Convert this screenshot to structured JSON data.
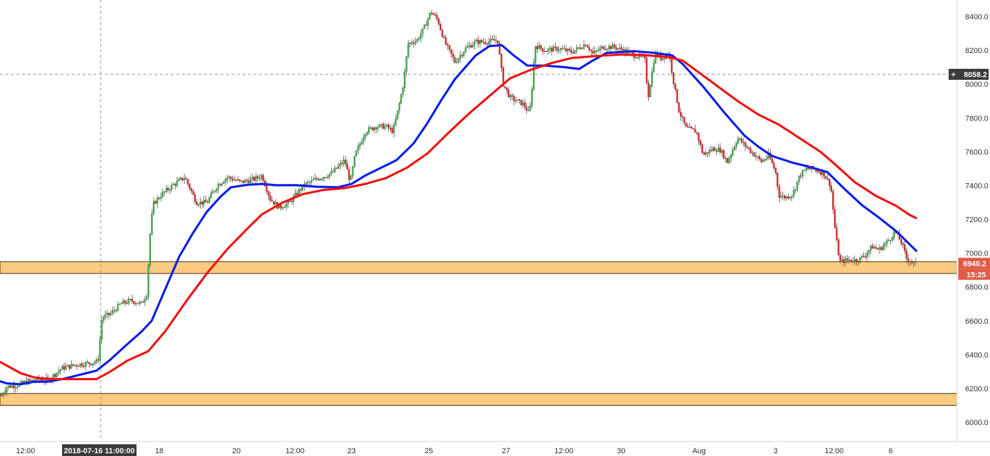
{
  "chart_data": {
    "type": "candlestick",
    "title": "",
    "xlabel": "",
    "ylabel": "",
    "ylim": [
      5900,
      8480
    ],
    "y_ticks": [
      "6000.0",
      "6200.0",
      "6400.0",
      "6600.0",
      "6800.0",
      "7000.0",
      "7200.0",
      "7400.0",
      "7600.0",
      "7800.0",
      "8000.0",
      "8200.0",
      "8400.0"
    ],
    "x_tick_labels": [
      "12:00",
      "18",
      "20",
      "12:00",
      "23",
      "25",
      "27",
      "12:00",
      "30",
      "Aug",
      "3",
      "12:00",
      "6"
    ],
    "crosshair": {
      "x_label": "2018-07-16 11:00:00",
      "y_label": "8058.2",
      "y_value": 8058.2
    },
    "last_price": {
      "label": "6940.2",
      "value": 6940.2,
      "countdown": "15:25"
    },
    "zones": [
      {
        "name": "upper-support-zone",
        "low": 6880,
        "high": 6950
      },
      {
        "name": "lower-support-zone",
        "low": 6100,
        "high": 6170
      }
    ],
    "series": [
      {
        "name": "",
        "kind": "moving-average",
        "color": "#0b1ee6",
        "points": [
          [
            -6,
            6250
          ],
          [
            10,
            6230
          ],
          [
            30,
            6225
          ],
          [
            50,
            6240
          ],
          [
            70,
            6240
          ],
          [
            90,
            6255
          ],
          [
            110,
            6275
          ],
          [
            140,
            6305
          ],
          [
            160,
            6370
          ],
          [
            180,
            6445
          ],
          [
            205,
            6535
          ],
          [
            220,
            6600
          ],
          [
            240,
            6790
          ],
          [
            260,
            6980
          ],
          [
            280,
            7120
          ],
          [
            300,
            7245
          ],
          [
            320,
            7335
          ],
          [
            335,
            7390
          ],
          [
            360,
            7405
          ],
          [
            380,
            7410
          ],
          [
            400,
            7402
          ],
          [
            430,
            7402
          ],
          [
            460,
            7393
          ],
          [
            490,
            7390
          ],
          [
            510,
            7410
          ],
          [
            530,
            7460
          ],
          [
            555,
            7510
          ],
          [
            575,
            7550
          ],
          [
            600,
            7650
          ],
          [
            620,
            7770
          ],
          [
            640,
            7905
          ],
          [
            660,
            8030
          ],
          [
            690,
            8170
          ],
          [
            710,
            8225
          ],
          [
            728,
            8230
          ],
          [
            745,
            8170
          ],
          [
            765,
            8110
          ],
          [
            790,
            8110
          ],
          [
            820,
            8100
          ],
          [
            840,
            8090
          ],
          [
            860,
            8140
          ],
          [
            880,
            8185
          ],
          [
            920,
            8195
          ],
          [
            950,
            8185
          ],
          [
            975,
            8170
          ],
          [
            990,
            8120
          ],
          [
            1020,
            7985
          ],
          [
            1050,
            7835
          ],
          [
            1080,
            7695
          ],
          [
            1100,
            7630
          ],
          [
            1120,
            7575
          ],
          [
            1150,
            7535
          ],
          [
            1170,
            7515
          ],
          [
            1200,
            7480
          ],
          [
            1225,
            7380
          ],
          [
            1250,
            7285
          ],
          [
            1275,
            7210
          ],
          [
            1300,
            7130
          ],
          [
            1315,
            7070
          ],
          [
            1330,
            7010
          ]
        ]
      },
      {
        "name": "",
        "kind": "moving-average",
        "color": "#ee1111",
        "points": [
          [
            -6,
            6370
          ],
          [
            10,
            6335
          ],
          [
            30,
            6290
          ],
          [
            50,
            6265
          ],
          [
            70,
            6255
          ],
          [
            100,
            6255
          ],
          [
            140,
            6255
          ],
          [
            160,
            6300
          ],
          [
            185,
            6365
          ],
          [
            215,
            6420
          ],
          [
            240,
            6540
          ],
          [
            270,
            6715
          ],
          [
            300,
            6880
          ],
          [
            330,
            7025
          ],
          [
            360,
            7150
          ],
          [
            380,
            7230
          ],
          [
            410,
            7300
          ],
          [
            440,
            7350
          ],
          [
            470,
            7375
          ],
          [
            500,
            7385
          ],
          [
            530,
            7410
          ],
          [
            560,
            7445
          ],
          [
            590,
            7505
          ],
          [
            620,
            7590
          ],
          [
            650,
            7710
          ],
          [
            680,
            7825
          ],
          [
            710,
            7930
          ],
          [
            740,
            8035
          ],
          [
            770,
            8085
          ],
          [
            800,
            8125
          ],
          [
            830,
            8155
          ],
          [
            860,
            8165
          ],
          [
            900,
            8175
          ],
          [
            940,
            8170
          ],
          [
            970,
            8160
          ],
          [
            990,
            8140
          ],
          [
            1010,
            8080
          ],
          [
            1040,
            7990
          ],
          [
            1070,
            7900
          ],
          [
            1100,
            7820
          ],
          [
            1130,
            7760
          ],
          [
            1160,
            7680
          ],
          [
            1190,
            7600
          ],
          [
            1210,
            7530
          ],
          [
            1240,
            7420
          ],
          [
            1270,
            7340
          ],
          [
            1300,
            7280
          ],
          [
            1318,
            7230
          ],
          [
            1330,
            7205
          ]
        ]
      },
      {
        "name": "",
        "kind": "price",
        "points": [
          [
            2,
            6160
          ],
          [
            10,
            6210
          ],
          [
            25,
            6220
          ],
          [
            40,
            6240
          ],
          [
            55,
            6255
          ],
          [
            70,
            6250
          ],
          [
            90,
            6320
          ],
          [
            110,
            6340
          ],
          [
            130,
            6350
          ],
          [
            142,
            6360
          ],
          [
            148,
            6620
          ],
          [
            160,
            6640
          ],
          [
            175,
            6700
          ],
          [
            190,
            6720
          ],
          [
            205,
            6700
          ],
          [
            213,
            6760
          ],
          [
            217,
            7080
          ],
          [
            222,
            7290
          ],
          [
            235,
            7350
          ],
          [
            250,
            7400
          ],
          [
            268,
            7450
          ],
          [
            285,
            7300
          ],
          [
            300,
            7300
          ],
          [
            315,
            7400
          ],
          [
            330,
            7450
          ],
          [
            350,
            7420
          ],
          [
            370,
            7440
          ],
          [
            380,
            7460
          ],
          [
            392,
            7320
          ],
          [
            405,
            7270
          ],
          [
            420,
            7300
          ],
          [
            440,
            7400
          ],
          [
            460,
            7440
          ],
          [
            480,
            7470
          ],
          [
            490,
            7510
          ],
          [
            500,
            7550
          ],
          [
            508,
            7420
          ],
          [
            515,
            7580
          ],
          [
            530,
            7720
          ],
          [
            545,
            7750
          ],
          [
            560,
            7750
          ],
          [
            570,
            7720
          ],
          [
            578,
            7860
          ],
          [
            585,
            8000
          ],
          [
            592,
            8240
          ],
          [
            605,
            8260
          ],
          [
            615,
            8330
          ],
          [
            625,
            8430
          ],
          [
            635,
            8380
          ],
          [
            645,
            8250
          ],
          [
            660,
            8130
          ],
          [
            675,
            8210
          ],
          [
            690,
            8250
          ],
          [
            705,
            8250
          ],
          [
            722,
            8260
          ],
          [
            730,
            8000
          ],
          [
            740,
            7920
          ],
          [
            750,
            7900
          ],
          [
            760,
            7880
          ],
          [
            768,
            7820
          ],
          [
            772,
            8000
          ],
          [
            776,
            8230
          ],
          [
            790,
            8200
          ],
          [
            810,
            8210
          ],
          [
            830,
            8190
          ],
          [
            850,
            8240
          ],
          [
            860,
            8180
          ],
          [
            875,
            8220
          ],
          [
            890,
            8220
          ],
          [
            905,
            8200
          ],
          [
            920,
            8170
          ],
          [
            935,
            8160
          ],
          [
            940,
            7920
          ],
          [
            950,
            8180
          ],
          [
            960,
            8150
          ],
          [
            970,
            8190
          ],
          [
            978,
            7990
          ],
          [
            985,
            7840
          ],
          [
            995,
            7740
          ],
          [
            1010,
            7720
          ],
          [
            1020,
            7580
          ],
          [
            1035,
            7620
          ],
          [
            1045,
            7610
          ],
          [
            1055,
            7540
          ],
          [
            1070,
            7680
          ],
          [
            1085,
            7620
          ],
          [
            1095,
            7580
          ],
          [
            1105,
            7540
          ],
          [
            1115,
            7580
          ],
          [
            1125,
            7480
          ],
          [
            1130,
            7340
          ],
          [
            1140,
            7330
          ],
          [
            1150,
            7350
          ],
          [
            1160,
            7460
          ],
          [
            1170,
            7500
          ],
          [
            1180,
            7500
          ],
          [
            1195,
            7470
          ],
          [
            1205,
            7400
          ],
          [
            1212,
            7110
          ],
          [
            1218,
            6950
          ],
          [
            1230,
            6960
          ],
          [
            1245,
            6960
          ],
          [
            1255,
            6990
          ],
          [
            1265,
            7040
          ],
          [
            1275,
            7020
          ],
          [
            1290,
            7080
          ],
          [
            1298,
            7130
          ],
          [
            1308,
            7060
          ],
          [
            1315,
            6970
          ],
          [
            1325,
            6940
          ],
          [
            1330,
            6940
          ]
        ]
      }
    ]
  }
}
